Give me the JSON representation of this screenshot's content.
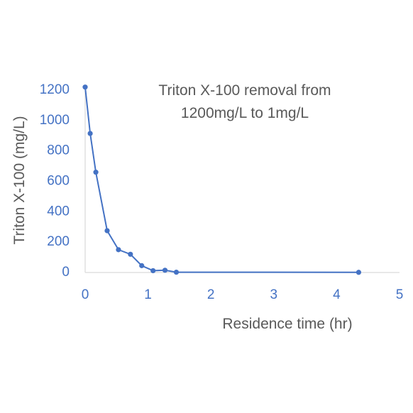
{
  "chart_data": {
    "type": "scatter",
    "title_lines": [
      "Triton X-100 removal from",
      "1200mg/L to 1mg/L"
    ],
    "xlabel": "Residence time (hr)",
    "ylabel": "Triton X-100 (mg/L)",
    "xlim": [
      0,
      5
    ],
    "ylim": [
      0,
      1200
    ],
    "xticks": [
      0,
      1,
      2,
      3,
      4,
      5
    ],
    "yticks": [
      0,
      200,
      400,
      600,
      800,
      1000,
      1200
    ],
    "grid": false,
    "legend": "none",
    "color": "#4472c4",
    "series": [
      {
        "x": [
          0,
          0.08,
          0.17,
          0.35,
          0.53,
          0.72,
          0.9,
          1.08,
          1.27,
          1.45,
          4.35
        ],
        "y": [
          1220,
          915,
          660,
          275,
          150,
          120,
          45,
          12,
          15,
          2,
          1
        ]
      }
    ]
  }
}
